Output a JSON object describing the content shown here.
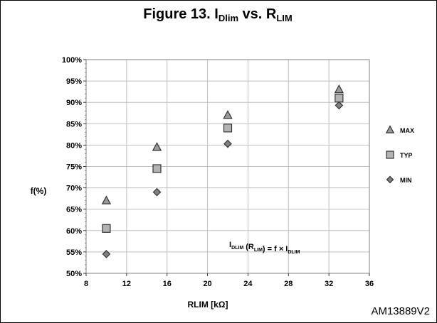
{
  "figure": {
    "title_prefix": "Figure 13. I",
    "title_sub1": "Dlim",
    "title_mid": " vs. R",
    "title_sub2": "LIM",
    "code": "AM13889V2"
  },
  "chart_data": {
    "type": "scatter",
    "xlabel": "RLIM [kΩ]",
    "ylabel": "f(%)",
    "xlim": [
      8,
      36
    ],
    "ylim": [
      50,
      100
    ],
    "x_ticks": [
      8,
      12,
      16,
      20,
      24,
      28,
      32,
      36
    ],
    "y_ticks": [
      50,
      55,
      60,
      65,
      70,
      75,
      80,
      85,
      90,
      95,
      100
    ],
    "y_tick_suffix": "%",
    "grid": true,
    "legend_placement": "right",
    "annotation": {
      "parts": [
        {
          "text": "I",
          "sub": false
        },
        {
          "text": "DLIM",
          "sub": true
        },
        {
          "text": " (R",
          "sub": false
        },
        {
          "text": "LIM",
          "sub": true
        },
        {
          "text": ") = f × I",
          "sub": false
        },
        {
          "text": "DLIM",
          "sub": true
        }
      ]
    },
    "series": [
      {
        "name": "MAX",
        "marker": "triangle",
        "x": [
          10,
          15,
          22,
          33
        ],
        "y": [
          67,
          79.5,
          87,
          93
        ]
      },
      {
        "name": "TYP",
        "marker": "square",
        "x": [
          10,
          15,
          22,
          33
        ],
        "y": [
          60.5,
          74.5,
          84,
          91
        ]
      },
      {
        "name": "MIN",
        "marker": "diamond",
        "x": [
          10,
          15,
          22,
          33
        ],
        "y": [
          54.5,
          69,
          80.3,
          89.3
        ]
      }
    ],
    "colors": {
      "marker_fill": "#9a9a9a",
      "marker_fill_square": "#b3b3b3",
      "marker_stroke": "#333333",
      "grid": "#bfbfbf"
    }
  }
}
